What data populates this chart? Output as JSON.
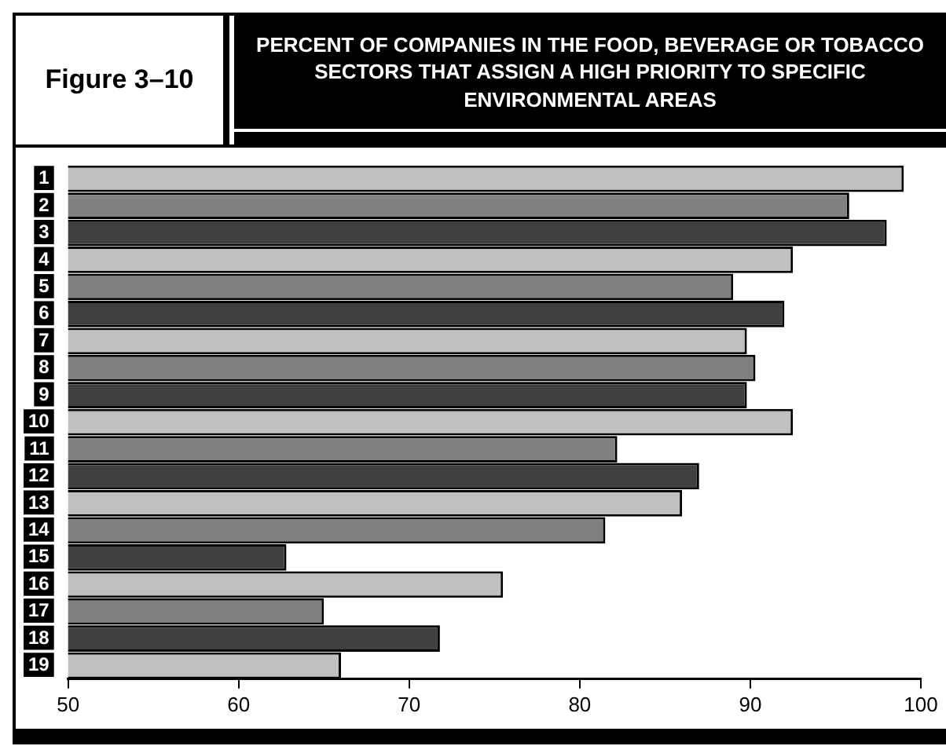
{
  "chart_data": {
    "type": "bar",
    "orientation": "horizontal",
    "title": "PERCENT OF COMPANIES IN THE FOOD, BEVERAGE OR TOBACCO SECTORS THAT ASSIGN A HIGH PRIORITY TO SPECIFIC ENVIRONMENTAL AREAS",
    "annotations": [
      "Figure 3–10"
    ],
    "categories": [
      "1",
      "2",
      "3",
      "4",
      "5",
      "6",
      "7",
      "8",
      "9",
      "10",
      "11",
      "12",
      "13",
      "14",
      "15",
      "16",
      "17",
      "18",
      "19"
    ],
    "values": [
      99,
      95.8,
      98,
      92.5,
      89,
      92,
      89.8,
      90.3,
      89.8,
      92.5,
      82.2,
      87,
      86,
      81.5,
      62.8,
      75.5,
      65,
      71.8,
      66
    ],
    "colors": [
      "#c0c0c0",
      "#808080",
      "#404040",
      "#c0c0c0",
      "#808080",
      "#404040",
      "#c0c0c0",
      "#808080",
      "#404040",
      "#c0c0c0",
      "#808080",
      "#404040",
      "#c0c0c0",
      "#808080",
      "#404040",
      "#c0c0c0",
      "#808080",
      "#404040",
      "#c0c0c0"
    ],
    "xlim": [
      50,
      100
    ],
    "xticks": [
      50,
      60,
      70,
      80,
      90,
      100
    ],
    "grid": false,
    "legend": false
  }
}
